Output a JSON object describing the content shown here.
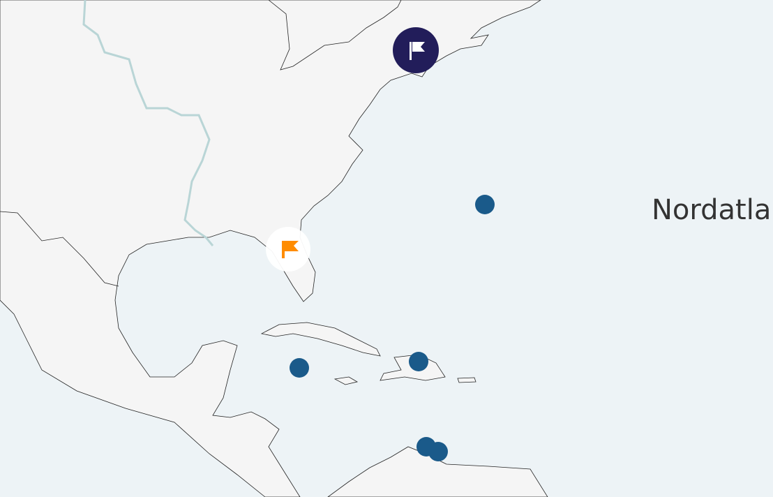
{
  "map": {
    "ocean_label": "Nordatla",
    "colors": {
      "land": "#f5f5f5",
      "sea": "#edf3f6",
      "coast": "#222222",
      "river": "#b9d5d6",
      "point": "#1a5a8a",
      "flag_dark": "#221d5a",
      "flag_orange": "#ff8c00"
    },
    "markers": [
      {
        "name": "flag-marker-dark",
        "icon": "flag-icon",
        "style": "dark"
      },
      {
        "name": "flag-marker-orange",
        "icon": "flag-icon",
        "style": "light"
      }
    ],
    "points_count_label": ""
  }
}
